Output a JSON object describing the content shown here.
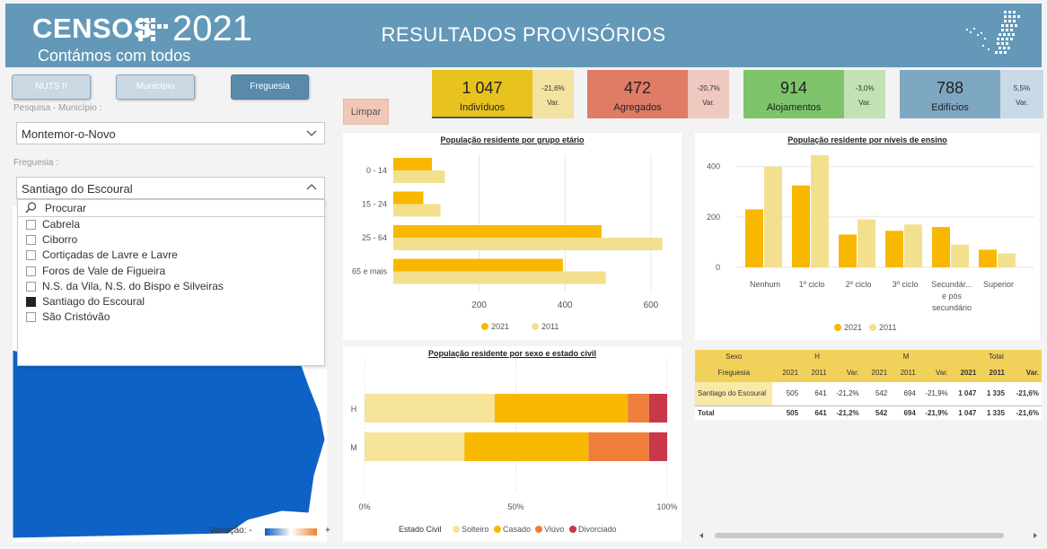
{
  "header": {
    "logo_text": "CENSOS",
    "logo_year": "2021",
    "tagline": "Contámos com todos",
    "title": "RESULTADOS PROVISÓRIOS"
  },
  "levels": {
    "nuts": "NUTS II",
    "municipio": "Município",
    "freguesia": "Freguesia"
  },
  "filters": {
    "municipio_label": "Pesquisa - Município :",
    "municipio_value": "Montemor-o-Novo",
    "freguesia_label": "Freguesia :",
    "freguesia_value": "Santiago do Escoural",
    "search_placeholder": "Procurar",
    "options": [
      {
        "label": "Cabrela",
        "checked": false
      },
      {
        "label": "Ciborro",
        "checked": false
      },
      {
        "label": "Cortiçadas de Lavre e Lavre",
        "checked": false
      },
      {
        "label": "Foros de Vale de Figueira",
        "checked": false
      },
      {
        "label": "N.S. da Vila, N.S. do Bispo e Silveiras",
        "checked": false
      },
      {
        "label": "Santiago do Escoural",
        "checked": true
      },
      {
        "label": "São Cristóvão",
        "checked": false
      }
    ]
  },
  "map_legend": {
    "label": "Variação:",
    "minus": "-",
    "plus": "+"
  },
  "clear_button": "Limpar",
  "kpis": [
    {
      "value": "1 047",
      "label": "Indivíduos",
      "var": "-21,6%",
      "var_label": "Var.",
      "color": "#e8c21e",
      "var_bg": "#f3e2a0"
    },
    {
      "value": "472",
      "label": "Agregados",
      "var": "-20,7%",
      "var_label": "Var.",
      "color": "#e07b66",
      "var_bg": "#efc8bf"
    },
    {
      "value": "914",
      "label": "Alojamentos",
      "var": "-3,0%",
      "var_label": "Var.",
      "color": "#7dc46b",
      "var_bg": "#c2e2b6"
    },
    {
      "value": "788",
      "label": "Edifícios",
      "var": "5,5%",
      "var_label": "Var.",
      "color": "#7ea7c2",
      "var_bg": "#c9dae6"
    }
  ],
  "colors": {
    "y2021": "#f9b800",
    "y2011": "#f3e08f",
    "solteiro": "#f5e49a",
    "casado": "#f9b800",
    "viuvo": "#ef7e3a",
    "divorciado": "#c9384a",
    "map_fill": "#0f62c5"
  },
  "chart_data": [
    {
      "type": "bar",
      "orientation": "horizontal",
      "title": "População residente por grupo etário",
      "categories": [
        "0 - 14",
        "15 - 24",
        "25 - 64",
        "65 e mais"
      ],
      "series": [
        {
          "name": "2021",
          "values": [
            90,
            70,
            485,
            395
          ]
        },
        {
          "name": "2011",
          "values": [
            120,
            110,
            627,
            495
          ]
        }
      ],
      "xlim": [
        0,
        640
      ],
      "xticks": [
        200,
        400,
        600
      ],
      "legend": "bottom"
    },
    {
      "type": "bar",
      "title": "População residente por níveis de ensino",
      "categories": [
        "Nenhum",
        "1º ciclo",
        "2º ciclo",
        "3º ciclo",
        "Secundár... e pós secundário",
        "Superior"
      ],
      "series": [
        {
          "name": "2021",
          "values": [
            230,
            325,
            130,
            145,
            160,
            70
          ]
        },
        {
          "name": "2011",
          "values": [
            400,
            445,
            190,
            170,
            90,
            55
          ]
        }
      ],
      "ylim": [
        0,
        470
      ],
      "yticks": [
        0,
        200,
        400
      ],
      "legend": "bottom"
    },
    {
      "type": "bar",
      "stacked": "100%",
      "orientation": "horizontal",
      "title": "População residente por sexo e estado civil",
      "categories": [
        "H",
        "M"
      ],
      "series": [
        {
          "name": "Solteiro",
          "values": [
            43,
            33
          ]
        },
        {
          "name": "Casado",
          "values": [
            44,
            41
          ]
        },
        {
          "name": "Viúvo",
          "values": [
            7,
            20
          ]
        },
        {
          "name": "Divorciado",
          "values": [
            6,
            6
          ]
        }
      ],
      "xticks": [
        "0%",
        "50%",
        "100%"
      ],
      "legend_title": "Estado Civil",
      "legend": "bottom"
    },
    {
      "type": "table",
      "header_groups": [
        "Sexo",
        "H",
        "M",
        "Total"
      ],
      "header": [
        "Freguesia",
        "2021",
        "2011",
        "Var.",
        "2021",
        "2011",
        "Var.",
        "2021",
        "2011",
        "Var."
      ],
      "rows": [
        [
          "Santiago do Escoural",
          "505",
          "641",
          "-21,2%",
          "542",
          "694",
          "-21,9%",
          "1 047",
          "1 335",
          "-21,6%"
        ],
        [
          "Total",
          "505",
          "641",
          "-21,2%",
          "542",
          "694",
          "-21,9%",
          "1 047",
          "1 335",
          "-21,6%"
        ]
      ]
    }
  ]
}
